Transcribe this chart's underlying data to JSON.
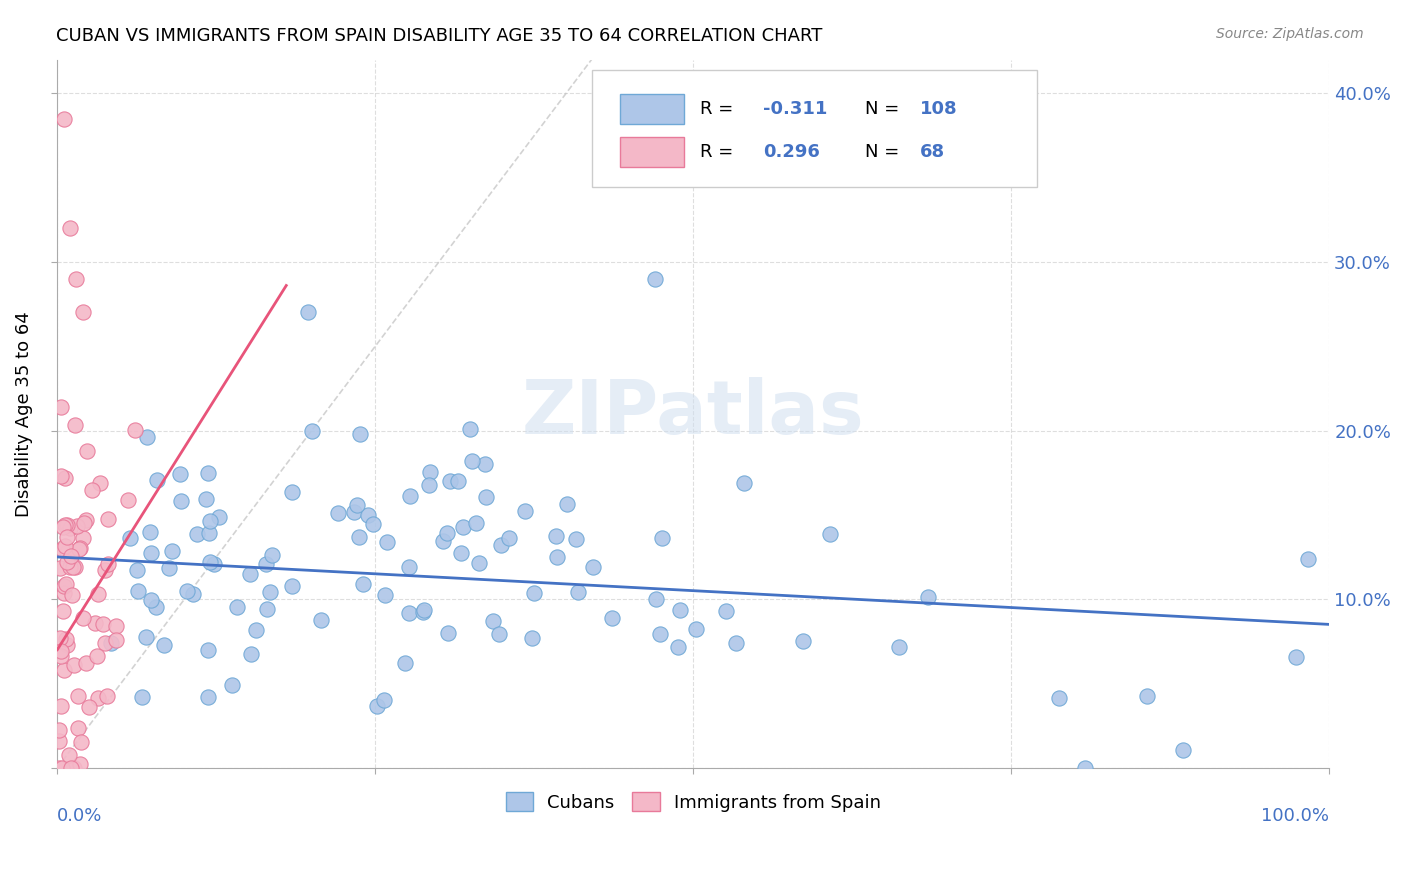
{
  "title": "CUBAN VS IMMIGRANTS FROM SPAIN DISABILITY AGE 35 TO 64 CORRELATION CHART",
  "source": "Source: ZipAtlas.com",
  "ylabel": "Disability Age 35 to 64",
  "watermark": "ZIPatlas",
  "cubans_color": "#aec6e8",
  "cubans_edge": "#6fa8d6",
  "spain_color": "#f4b8c8",
  "spain_edge": "#e87a9a",
  "trend_blue": "#4472c4",
  "trend_pink": "#e8547a",
  "trend_dashed": "#c0c0c0",
  "R_cubans": -0.311,
  "N_cubans": 108,
  "R_spain": 0.296,
  "N_spain": 68,
  "seed_cubans": 42,
  "seed_spain": 99
}
